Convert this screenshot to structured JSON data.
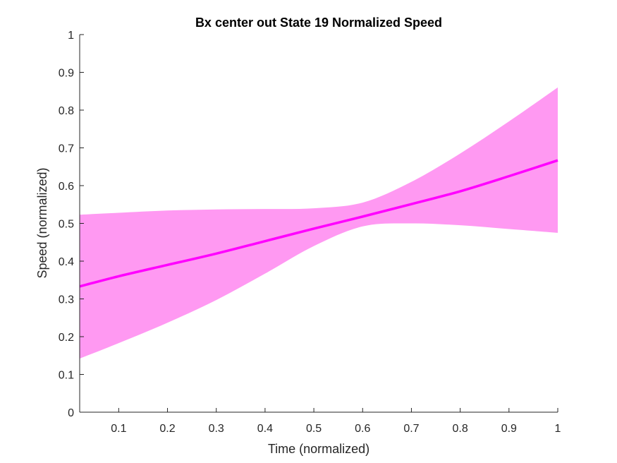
{
  "chart_data": {
    "type": "line",
    "title": "Bx  center out State 19 Normalized Speed",
    "xlabel": "Time (normalized)",
    "ylabel": "Speed (normalized)",
    "xlim": [
      0.02,
      1
    ],
    "ylim": [
      0,
      1
    ],
    "xticks": [
      "0.1",
      "0.2",
      "0.3",
      "0.4",
      "0.5",
      "0.6",
      "0.7",
      "0.8",
      "0.9",
      "1"
    ],
    "yticks": [
      "0",
      "0.1",
      "0.2",
      "0.3",
      "0.4",
      "0.5",
      "0.6",
      "0.7",
      "0.8",
      "0.9",
      "1"
    ],
    "grid": false,
    "colors": {
      "line": "#ff00ff",
      "band": "#ff99f2"
    },
    "series": [
      {
        "x": [
          0.02,
          0.1,
          0.2,
          0.3,
          0.4,
          0.5,
          0.6,
          0.7,
          0.8,
          0.9,
          1.0
        ],
        "values": [
          0.333,
          0.36,
          0.39,
          0.42,
          0.453,
          0.486,
          0.518,
          0.551,
          0.585,
          0.625,
          0.667
        ],
        "band_upper": [
          0.523,
          0.528,
          0.534,
          0.537,
          0.538,
          0.54,
          0.555,
          0.61,
          0.685,
          0.77,
          0.86
        ],
        "band_lower": [
          0.142,
          0.183,
          0.237,
          0.297,
          0.367,
          0.44,
          0.492,
          0.5,
          0.495,
          0.485,
          0.475
        ]
      }
    ]
  }
}
